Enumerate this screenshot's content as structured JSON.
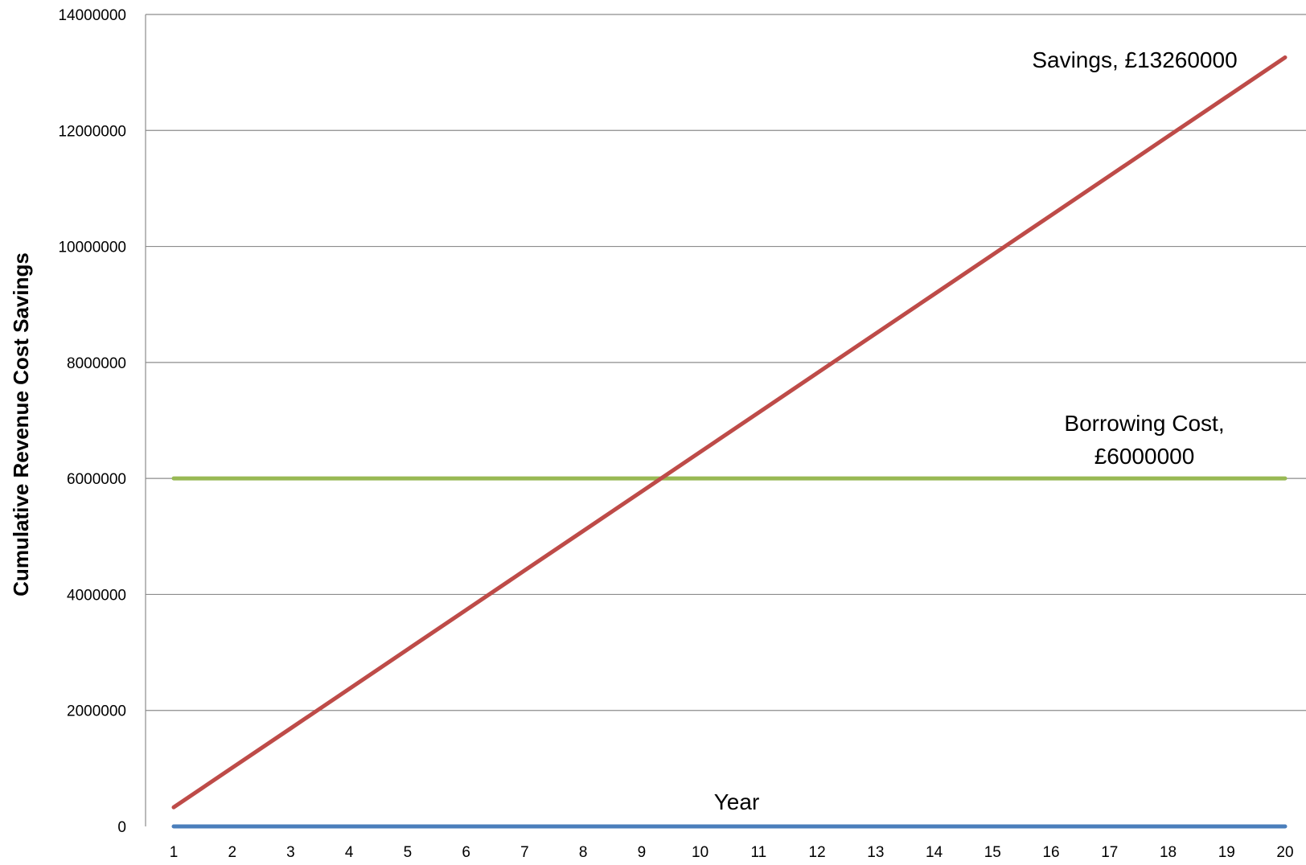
{
  "chart_data": {
    "type": "line",
    "title": "",
    "xlabel": "",
    "ylabel": "Cumulative Revenue Cost Savings",
    "x": [
      1,
      2,
      3,
      4,
      5,
      6,
      7,
      8,
      9,
      10,
      11,
      12,
      13,
      14,
      15,
      16,
      17,
      18,
      19,
      20
    ],
    "x_tick_labels": [
      "1",
      "2",
      "3",
      "4",
      "5",
      "6",
      "7",
      "8",
      "9",
      "10",
      "11",
      "12",
      "13",
      "14",
      "15",
      "16",
      "17",
      "18",
      "19",
      "20"
    ],
    "y_tick_labels": [
      "0",
      "2000000",
      "4000000",
      "6000000",
      "8000000",
      "10000000",
      "12000000",
      "14000000"
    ],
    "ylim": [
      0,
      14000000
    ],
    "grid": true,
    "legend": "none",
    "series": [
      {
        "label_lines": [
          "Year"
        ],
        "color": "#4a7ebb",
        "values": [
          0,
          0,
          0,
          0,
          0,
          0,
          0,
          0,
          0,
          0,
          0,
          0,
          0,
          0,
          0,
          0,
          0,
          0,
          0,
          0
        ]
      },
      {
        "label_lines": [
          "Savings, £13260000"
        ],
        "color": "#be4b48",
        "values": [
          330000,
          1010526,
          1691053,
          2371579,
          3052105,
          3732632,
          4413158,
          5093684,
          5774211,
          6454737,
          7135263,
          7815789,
          8496316,
          9176842,
          9857368,
          10537895,
          11218421,
          11898947,
          12579474,
          13260000
        ]
      },
      {
        "label_lines": [
          "Borrowing Cost,",
          "£6000000"
        ],
        "color": "#98b954",
        "values": [
          6000000,
          6000000,
          6000000,
          6000000,
          6000000,
          6000000,
          6000000,
          6000000,
          6000000,
          6000000,
          6000000,
          6000000,
          6000000,
          6000000,
          6000000,
          6000000,
          6000000,
          6000000,
          6000000,
          6000000
        ]
      }
    ]
  }
}
